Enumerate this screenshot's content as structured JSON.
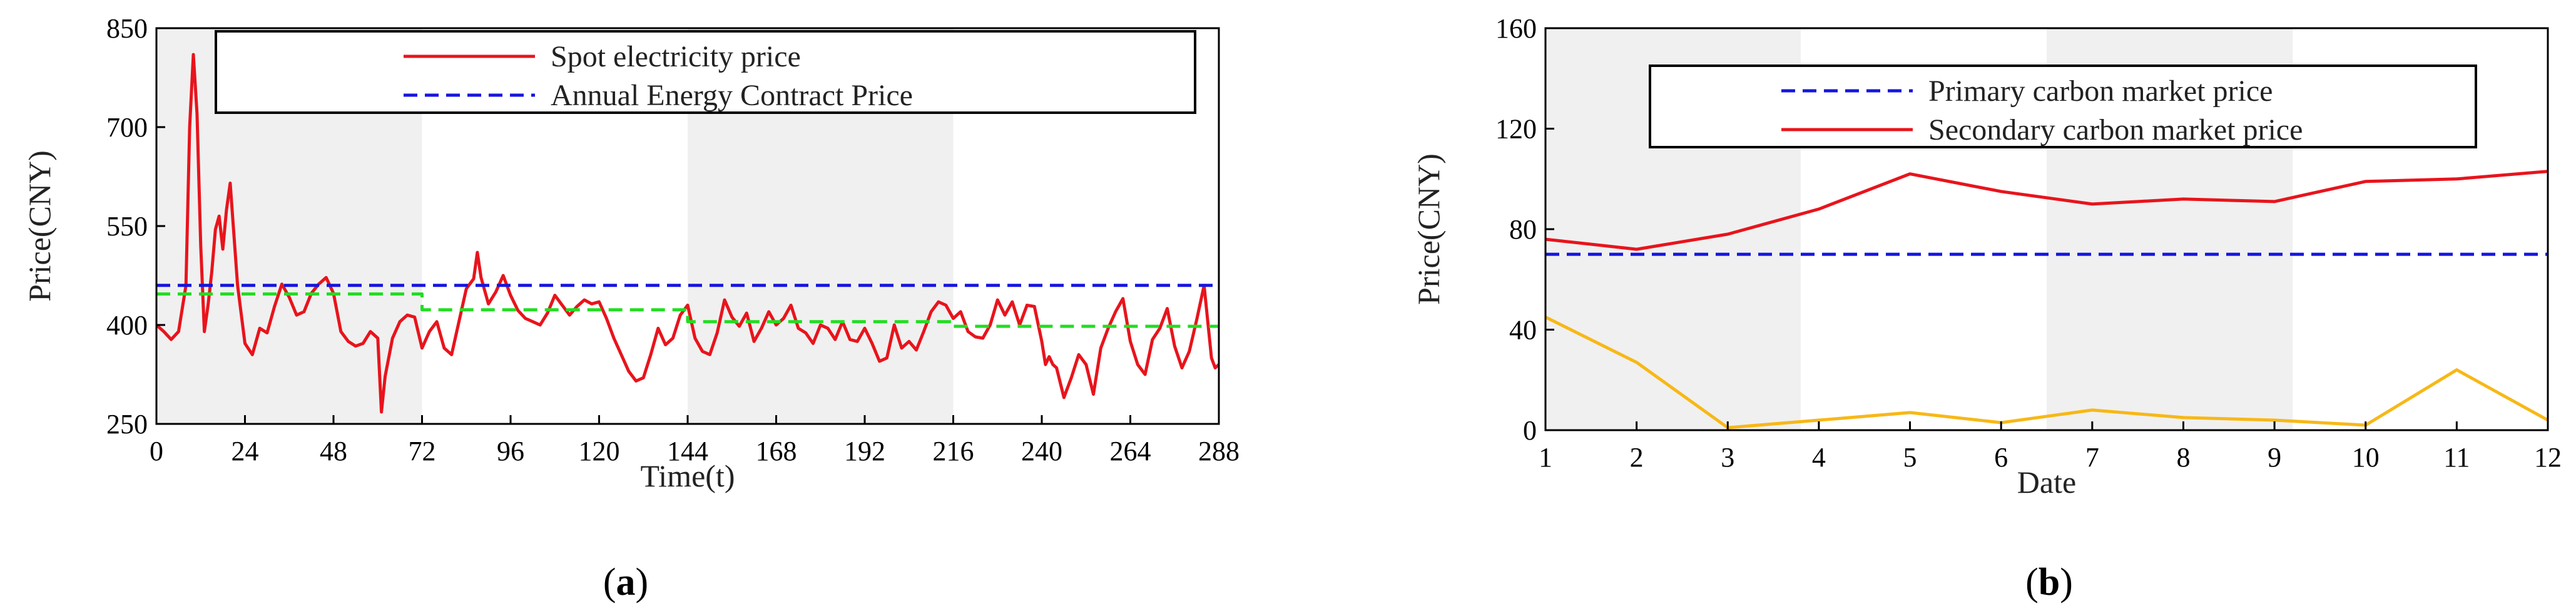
{
  "chart_data": [
    {
      "type": "line",
      "caption": "(a)",
      "xlabel": "Time(t)",
      "ylabel": "Price(CNY)",
      "xlim": [
        0,
        288
      ],
      "ylim": [
        250,
        850
      ],
      "xticks": [
        "0",
        "24",
        "48",
        "72",
        "96",
        "120",
        "144",
        "168",
        "192",
        "216",
        "240",
        "264",
        "288"
      ],
      "yticks": [
        "250",
        "400",
        "550",
        "700",
        "850"
      ],
      "shaded_bands": [
        [
          0,
          72
        ],
        [
          144,
          216
        ]
      ],
      "legend_position": "top",
      "series": [
        {
          "name": "Spot electricity price",
          "color": "#e8141c",
          "style": "solid",
          "x": [
            0,
            2,
            4,
            6,
            8,
            9,
            10,
            11,
            12,
            13,
            14,
            15,
            16,
            17,
            18,
            19,
            20,
            22,
            24,
            26,
            28,
            30,
            32,
            34,
            36,
            38,
            40,
            42,
            44,
            46,
            48,
            50,
            52,
            54,
            56,
            58,
            60,
            61,
            62,
            64,
            66,
            68,
            70,
            72,
            74,
            76,
            78,
            80,
            82,
            84,
            86,
            87,
            88,
            90,
            92,
            94,
            96,
            98,
            100,
            102,
            104,
            106,
            108,
            110,
            112,
            114,
            116,
            118,
            120,
            122,
            124,
            126,
            128,
            130,
            132,
            134,
            136,
            138,
            140,
            142,
            144,
            146,
            148,
            150,
            152,
            154,
            156,
            158,
            160,
            162,
            164,
            166,
            168,
            170,
            172,
            174,
            176,
            178,
            180,
            182,
            184,
            186,
            188,
            190,
            192,
            194,
            196,
            198,
            200,
            202,
            204,
            206,
            208,
            210,
            212,
            214,
            216,
            218,
            220,
            222,
            224,
            226,
            228,
            230,
            232,
            234,
            236,
            238,
            240,
            241,
            242,
            243,
            244,
            246,
            248,
            250,
            252,
            254,
            256,
            258,
            260,
            262,
            264,
            266,
            268,
            270,
            272,
            274,
            276,
            278,
            280,
            282,
            284,
            286,
            287,
            288
          ],
          "y": [
            400,
            390,
            378,
            390,
            460,
            700,
            810,
            720,
            520,
            390,
            430,
            480,
            545,
            565,
            515,
            575,
            615,
            460,
            372,
            355,
            395,
            388,
            428,
            462,
            442,
            415,
            420,
            448,
            462,
            472,
            448,
            390,
            375,
            368,
            372,
            390,
            380,
            268,
            322,
            380,
            405,
            415,
            412,
            365,
            390,
            405,
            365,
            355,
            405,
            455,
            470,
            510,
            472,
            432,
            450,
            475,
            445,
            422,
            410,
            405,
            400,
            418,
            445,
            430,
            415,
            428,
            438,
            432,
            435,
            410,
            380,
            355,
            330,
            315,
            320,
            355,
            395,
            370,
            380,
            415,
            430,
            380,
            360,
            355,
            388,
            438,
            412,
            398,
            418,
            375,
            395,
            420,
            400,
            410,
            430,
            395,
            388,
            372,
            400,
            395,
            378,
            405,
            378,
            375,
            395,
            372,
            345,
            350,
            400,
            365,
            375,
            362,
            390,
            420,
            435,
            430,
            410,
            420,
            390,
            382,
            380,
            400,
            438,
            415,
            435,
            400,
            430,
            428,
            375,
            340,
            352,
            340,
            335,
            290,
            320,
            355,
            340,
            295,
            365,
            395,
            420,
            440,
            375,
            340,
            325,
            378,
            395,
            425,
            368,
            335,
            360,
            408,
            460,
            350,
            335,
            340
          ]
        },
        {
          "name": "Annual Energy Contract Price",
          "color": "#1515e0",
          "style": "dashed",
          "x": [
            0,
            288
          ],
          "y": [
            460,
            460
          ]
        },
        {
          "name": "",
          "color": "#22dd22",
          "style": "dashed",
          "x": [
            0,
            72,
            72,
            144,
            144,
            216,
            216,
            288
          ],
          "y": [
            447,
            447,
            423,
            423,
            405,
            405,
            398,
            398
          ]
        }
      ]
    },
    {
      "type": "line",
      "caption": "(b)",
      "xlabel": "Date",
      "ylabel": "Price(CNY)",
      "xlim": [
        1,
        12
      ],
      "ylim": [
        0,
        160
      ],
      "xticks": [
        "1",
        "2",
        "3",
        "4",
        "5",
        "6",
        "7",
        "8",
        "9",
        "10",
        "11",
        "12"
      ],
      "yticks": [
        "0",
        "40",
        "80",
        "120",
        "160"
      ],
      "shaded_bands": [
        [
          1,
          3.8
        ],
        [
          6.5,
          9.2
        ]
      ],
      "legend_position": "top",
      "series": [
        {
          "name": "Primary carbon market price",
          "color": "#1515e0",
          "style": "dashed",
          "x": [
            1,
            12
          ],
          "y": [
            70,
            70
          ]
        },
        {
          "name": "Secondary carbon market price",
          "color": "#e8141c",
          "style": "solid",
          "x": [
            1,
            2,
            3,
            4,
            5,
            6,
            7,
            8,
            9,
            10,
            11,
            12
          ],
          "y": [
            76,
            72,
            78,
            88,
            102,
            95,
            90,
            92,
            91,
            99,
            100,
            103
          ]
        },
        {
          "name": "",
          "color": "#f7b817",
          "style": "solid",
          "x": [
            1,
            2,
            3,
            4,
            5,
            6,
            7,
            8,
            9,
            10,
            11,
            12
          ],
          "y": [
            45,
            27,
            1,
            4,
            7,
            3,
            8,
            5,
            4,
            2,
            24,
            4
          ]
        }
      ]
    }
  ]
}
